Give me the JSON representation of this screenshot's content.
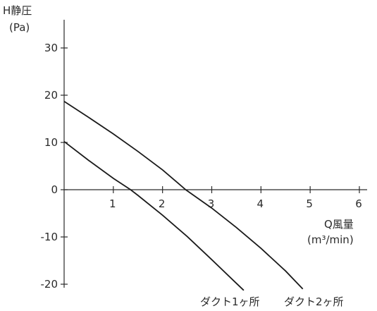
{
  "chart_data": {
    "type": "line",
    "ylabel_line1": "H静圧",
    "ylabel_line2": "(Pa)",
    "xlabel_line1": "Q風量",
    "xlabel_line2": "(m³/min)",
    "xlim": [
      0,
      6
    ],
    "ylim": [
      -20,
      30
    ],
    "xticks": [
      1,
      2,
      3,
      4,
      5,
      6
    ],
    "yticks": [
      30,
      20,
      10,
      0,
      -10,
      -20
    ],
    "grid": false,
    "series": [
      {
        "name": "ダクト1ヶ所",
        "x": [
          0,
          0.5,
          1.0,
          1.35,
          1.5,
          2.0,
          2.5,
          3.0,
          3.5,
          3.65
        ],
        "y": [
          10.2,
          6.2,
          2.4,
          0.0,
          -1.2,
          -5.4,
          -9.9,
          -14.8,
          -19.8,
          -21.3
        ]
      },
      {
        "name": "ダクト2ヶ所",
        "x": [
          0,
          0.5,
          1.0,
          1.5,
          2.0,
          2.47,
          3.0,
          3.5,
          4.0,
          4.5,
          4.85
        ],
        "y": [
          18.7,
          15.3,
          11.8,
          8.1,
          4.2,
          0.0,
          -3.9,
          -8.0,
          -12.4,
          -17.2,
          -21.0
        ]
      }
    ]
  }
}
